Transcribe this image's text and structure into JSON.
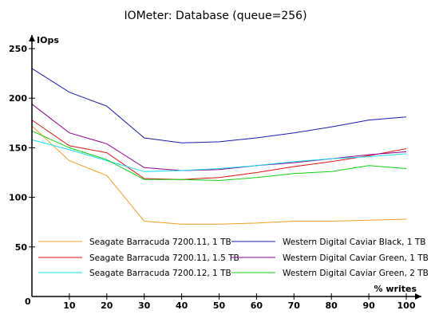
{
  "chart_data": {
    "type": "line",
    "title": "IOMeter: Database (queue=256)",
    "ylabel": "IOps",
    "xlabel": "% writes",
    "x": [
      0,
      10,
      20,
      30,
      40,
      50,
      60,
      70,
      80,
      90,
      100
    ],
    "x_ticks": [
      10,
      20,
      30,
      40,
      50,
      60,
      70,
      80,
      90,
      100
    ],
    "y_ticks": [
      50,
      100,
      150,
      200,
      250
    ],
    "origin_label": "0",
    "xlim": [
      0,
      100
    ],
    "ylim": [
      0,
      250
    ],
    "grid": false,
    "legend_position": "bottom",
    "series": [
      {
        "name": "Seagate Barracuda 7200.11, 1 TB",
        "color": "#f0a020",
        "values": [
          172,
          137,
          122,
          76,
          73,
          73,
          74,
          76,
          76,
          77,
          78
        ]
      },
      {
        "name": "Western Digital Caviar Black, 1 TB",
        "color": "#1a1ab0",
        "values": [
          230,
          206,
          192,
          160,
          155,
          156,
          160,
          165,
          171,
          178,
          181
        ]
      },
      {
        "name": "Seagate Barracuda 7200.11, 1.5 TB",
        "color": "#e01010",
        "values": [
          178,
          152,
          145,
          119,
          118,
          120,
          125,
          131,
          136,
          142,
          149
        ]
      },
      {
        "name": "Western Digital Caviar Green, 1 TB",
        "color": "#900090",
        "values": [
          194,
          165,
          154,
          130,
          127,
          128,
          132,
          135,
          139,
          143,
          146
        ]
      },
      {
        "name": "Seagate Barracuda 7200.12, 1 TB",
        "color": "#10e0f0",
        "values": [
          158,
          148,
          137,
          126,
          127,
          129,
          132,
          136,
          139,
          141,
          144
        ]
      },
      {
        "name": "Western Digital Caviar Green, 2 TB",
        "color": "#10d010",
        "values": [
          167,
          150,
          138,
          118,
          118,
          117,
          120,
          124,
          126,
          132,
          129
        ]
      }
    ]
  }
}
